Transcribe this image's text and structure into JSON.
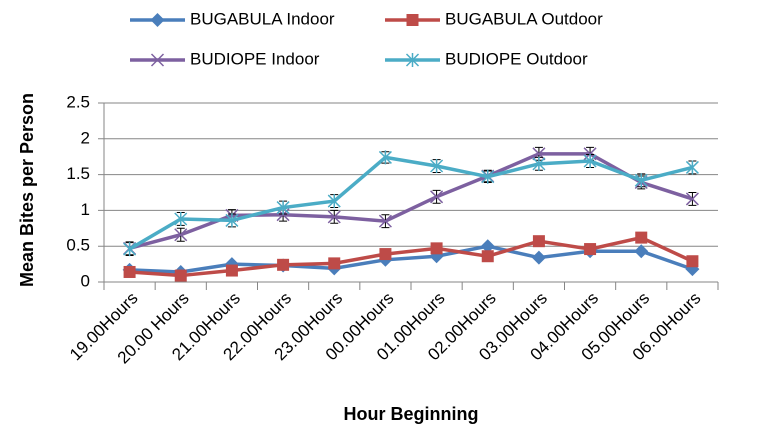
{
  "chart_data": {
    "type": "line",
    "x_label": "Hour Beginning",
    "y_label": "Mean Bites per Person",
    "categories": [
      "19.00Hours",
      "20.00 Hours",
      "21.00Hours",
      "22.00Hours",
      "23.00Hours",
      "00.00Hours",
      "01.00Hours",
      "02.00Hours",
      "03.00Hours",
      "04.00Hours",
      "05.00Hours",
      "06.00Hours"
    ],
    "series": [
      {
        "name": "BUGABULA Indoor",
        "color": "#4a7ebb",
        "marker": "diamond",
        "values": [
          0.17,
          0.14,
          0.25,
          0.23,
          0.19,
          0.31,
          0.36,
          0.5,
          0.34,
          0.43,
          0.43,
          0.18
        ]
      },
      {
        "name": "BUGABULA Outdoor",
        "color": "#be4b48",
        "marker": "square",
        "values": [
          0.14,
          0.09,
          0.16,
          0.24,
          0.26,
          0.39,
          0.47,
          0.36,
          0.57,
          0.46,
          0.62,
          0.29
        ]
      },
      {
        "name": "BUDIOPE Indoor",
        "color": "#7d60a0",
        "marker": "x",
        "values": [
          0.47,
          0.66,
          0.93,
          0.94,
          0.91,
          0.85,
          1.19,
          1.48,
          1.79,
          1.79,
          1.39,
          1.16
        ],
        "errors": [
          0.09,
          0.09,
          0.08,
          0.09,
          0.09,
          0.09,
          0.09,
          0.08,
          0.09,
          0.09,
          0.09,
          0.09
        ]
      },
      {
        "name": "BUDIOPE Outdoor",
        "color": "#4bacc6",
        "marker": "asterisk",
        "values": [
          0.46,
          0.88,
          0.86,
          1.04,
          1.13,
          1.74,
          1.62,
          1.47,
          1.65,
          1.69,
          1.42,
          1.6
        ],
        "errors": [
          0.09,
          0.09,
          0.09,
          0.09,
          0.09,
          0.08,
          0.09,
          0.08,
          0.09,
          0.09,
          0.09,
          0.09
        ]
      }
    ],
    "ylim": [
      0,
      2.5
    ],
    "yticks": [
      0,
      0.5,
      1,
      1.5,
      2,
      2.5
    ],
    "grid": true,
    "legend": "top"
  }
}
